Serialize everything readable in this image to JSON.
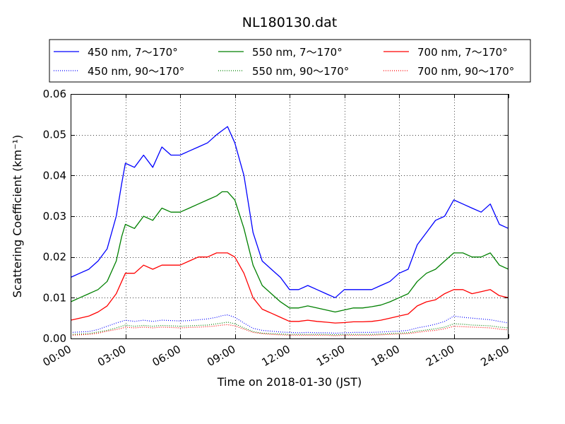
{
  "chart_data": {
    "type": "line",
    "title": "NL180130.dat",
    "xlabel": "Time on 2018-01-30 (JST)",
    "ylabel": "Scattering Coefficient (km⁻¹)",
    "xlim": [
      0,
      24
    ],
    "ylim": [
      0,
      0.06
    ],
    "x_ticks": [
      0,
      3,
      6,
      9,
      12,
      15,
      18,
      21,
      24
    ],
    "x_tick_labels": [
      "00:00",
      "03:00",
      "06:00",
      "09:00",
      "12:00",
      "15:00",
      "18:00",
      "21:00",
      "24:00"
    ],
    "y_ticks": [
      0,
      0.01,
      0.02,
      0.03,
      0.04,
      0.05,
      0.06
    ],
    "y_tick_labels": [
      "0.00",
      "0.01",
      "0.02",
      "0.03",
      "0.04",
      "0.05",
      "0.06"
    ],
    "grid": true,
    "legend_position": "top",
    "x": [
      0,
      0.5,
      1,
      1.5,
      2,
      2.5,
      2.8,
      3,
      3.5,
      4,
      4.5,
      5,
      5.5,
      6,
      6.5,
      7,
      7.5,
      8,
      8.3,
      8.6,
      9,
      9.5,
      10,
      10.5,
      11,
      11.5,
      12,
      12.5,
      13,
      13.5,
      14,
      14.5,
      15,
      15.5,
      16,
      16.5,
      17,
      17.5,
      18,
      18.5,
      19,
      19.5,
      20,
      20.5,
      21,
      21.5,
      22,
      22.5,
      23,
      23.5,
      24
    ],
    "series": [
      {
        "name": "450 nm, 7～170°",
        "color": "#0000ff",
        "style": "solid",
        "values": [
          0.015,
          0.016,
          0.017,
          0.019,
          0.022,
          0.03,
          0.038,
          0.043,
          0.042,
          0.045,
          0.042,
          0.047,
          0.045,
          0.045,
          0.046,
          0.047,
          0.048,
          0.05,
          0.051,
          0.052,
          0.048,
          0.04,
          0.026,
          0.019,
          0.017,
          0.015,
          0.012,
          0.012,
          0.013,
          0.012,
          0.011,
          0.01,
          0.012,
          0.012,
          0.012,
          0.012,
          0.013,
          0.014,
          0.016,
          0.017,
          0.023,
          0.026,
          0.029,
          0.03,
          0.034,
          0.033,
          0.032,
          0.031,
          0.033,
          0.028,
          0.027
        ]
      },
      {
        "name": "450 nm, 90～170°",
        "color": "#0000ff",
        "style": "dotted",
        "values": [
          0.0015,
          0.0016,
          0.0017,
          0.0022,
          0.003,
          0.0038,
          0.0042,
          0.0045,
          0.0042,
          0.0045,
          0.0042,
          0.0045,
          0.0044,
          0.0043,
          0.0044,
          0.0046,
          0.0048,
          0.0052,
          0.0056,
          0.0058,
          0.0052,
          0.0038,
          0.0025,
          0.002,
          0.0018,
          0.0016,
          0.0015,
          0.0014,
          0.0015,
          0.0014,
          0.0014,
          0.0013,
          0.0014,
          0.0015,
          0.0015,
          0.0015,
          0.0016,
          0.0017,
          0.0018,
          0.002,
          0.0026,
          0.003,
          0.0035,
          0.0042,
          0.0055,
          0.0052,
          0.005,
          0.0048,
          0.0046,
          0.0042,
          0.0038
        ]
      },
      {
        "name": "550 nm, 7～170°",
        "color": "#008000",
        "style": "solid",
        "values": [
          0.009,
          0.01,
          0.011,
          0.012,
          0.014,
          0.019,
          0.025,
          0.028,
          0.027,
          0.03,
          0.029,
          0.032,
          0.031,
          0.031,
          0.032,
          0.033,
          0.034,
          0.035,
          0.036,
          0.036,
          0.034,
          0.027,
          0.018,
          0.013,
          0.011,
          0.009,
          0.0075,
          0.0075,
          0.008,
          0.0075,
          0.007,
          0.0065,
          0.007,
          0.0075,
          0.0075,
          0.0078,
          0.0082,
          0.009,
          0.01,
          0.011,
          0.014,
          0.016,
          0.017,
          0.019,
          0.021,
          0.021,
          0.02,
          0.02,
          0.021,
          0.018,
          0.017
        ]
      },
      {
        "name": "550 nm, 90～170°",
        "color": "#008000",
        "style": "dotted",
        "values": [
          0.001,
          0.0011,
          0.0012,
          0.0016,
          0.002,
          0.0026,
          0.003,
          0.0033,
          0.003,
          0.0032,
          0.003,
          0.0032,
          0.0031,
          0.003,
          0.0031,
          0.0032,
          0.0033,
          0.0036,
          0.0038,
          0.004,
          0.0036,
          0.0026,
          0.0017,
          0.0013,
          0.0012,
          0.0011,
          0.001,
          0.001,
          0.001,
          0.001,
          0.001,
          0.0009,
          0.001,
          0.001,
          0.001,
          0.001,
          0.0011,
          0.0012,
          0.0013,
          0.0014,
          0.0018,
          0.0021,
          0.0024,
          0.0028,
          0.0036,
          0.0035,
          0.0033,
          0.0032,
          0.0031,
          0.0028,
          0.0026
        ]
      },
      {
        "name": "700 nm, 7～170°",
        "color": "#ff0000",
        "style": "solid",
        "values": [
          0.0045,
          0.005,
          0.0055,
          0.0065,
          0.008,
          0.011,
          0.014,
          0.016,
          0.016,
          0.018,
          0.017,
          0.018,
          0.018,
          0.018,
          0.019,
          0.02,
          0.02,
          0.021,
          0.021,
          0.021,
          0.02,
          0.016,
          0.01,
          0.0072,
          0.0062,
          0.0052,
          0.0042,
          0.0042,
          0.0045,
          0.0042,
          0.004,
          0.0038,
          0.0039,
          0.0041,
          0.0041,
          0.0042,
          0.0045,
          0.005,
          0.0055,
          0.006,
          0.008,
          0.009,
          0.0095,
          0.011,
          0.012,
          0.012,
          0.011,
          0.0115,
          0.012,
          0.0105,
          0.01
        ]
      },
      {
        "name": "700 nm, 90～170°",
        "color": "#ff0000",
        "style": "dotted",
        "values": [
          0.0008,
          0.0009,
          0.001,
          0.0013,
          0.0018,
          0.0022,
          0.0025,
          0.0028,
          0.0026,
          0.0028,
          0.0026,
          0.0028,
          0.0027,
          0.0026,
          0.0027,
          0.0028,
          0.0029,
          0.0031,
          0.0033,
          0.0034,
          0.0031,
          0.0023,
          0.0015,
          0.0012,
          0.001,
          0.0009,
          0.0008,
          0.0008,
          0.0008,
          0.0008,
          0.0008,
          0.0007,
          0.0008,
          0.0008,
          0.0008,
          0.0008,
          0.0009,
          0.001,
          0.0011,
          0.0012,
          0.0015,
          0.0018,
          0.002,
          0.0024,
          0.003,
          0.0029,
          0.0028,
          0.0027,
          0.0026,
          0.0023,
          0.0021
        ]
      }
    ]
  }
}
